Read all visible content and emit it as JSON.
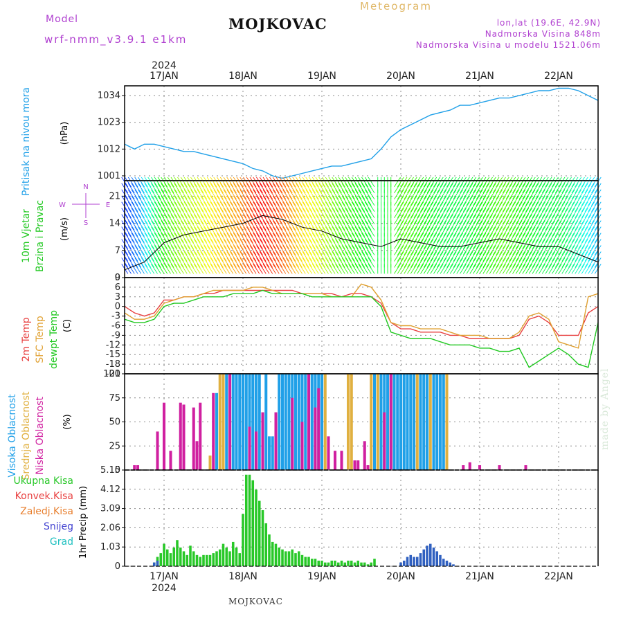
{
  "title": "MOJKOVAC",
  "footer": "MOJKOVAC",
  "meteogram_label": "Meteogram",
  "model": {
    "label": "Model",
    "name": "wrf-nmm_v3.9.1 e1km"
  },
  "location": {
    "coords": "lon,lat (19.6E, 42.9N)",
    "elevation": "Nadmorska Visina 848m",
    "model_elevation": "Nadmorska Visina u modelu 1521.06m"
  },
  "watermark": "made by Angel",
  "time_axis": {
    "year": "2024",
    "days": [
      "17JAN",
      "18JAN",
      "19JAN",
      "20JAN",
      "21JAN",
      "22JAN"
    ],
    "start_hour": -12,
    "end_hour": 132
  },
  "colors": {
    "pressure": "#20a0e8",
    "temp2m": "#e84040",
    "sfc_temp": "#e0a030",
    "dewpoint": "#20c820",
    "high_cloud": "#20a0e8",
    "mid_cloud": "#e0b040",
    "low_cloud": "#d020a0",
    "total_precip": "#28c828",
    "snow": "#3060c0"
  },
  "chart_data": [
    {
      "type": "line",
      "panel": "pressure",
      "ylabel_lines": [
        "Pritisak na nivou mora",
        "(hPa)"
      ],
      "yticks": [
        1001,
        1012,
        1023,
        1034
      ],
      "ylim": [
        999,
        1038
      ],
      "series": [
        {
          "color_key": "pressure",
          "x": [
            -12,
            -9,
            -6,
            -3,
            0,
            3,
            6,
            9,
            12,
            15,
            18,
            21,
            24,
            27,
            30,
            33,
            36,
            39,
            42,
            45,
            48,
            51,
            54,
            57,
            60,
            63,
            66,
            69,
            72,
            75,
            78,
            81,
            84,
            87,
            90,
            93,
            96,
            99,
            102,
            105,
            108,
            111,
            114,
            117,
            120,
            123,
            126,
            129,
            132
          ],
          "y": [
            1014,
            1012,
            1014,
            1014,
            1013,
            1012,
            1011,
            1011,
            1010,
            1009,
            1008,
            1007,
            1006,
            1004,
            1003,
            1001,
            1000,
            1001,
            1002,
            1003,
            1004,
            1005,
            1005,
            1006,
            1007,
            1008,
            1012,
            1017,
            1020,
            1022,
            1024,
            1026,
            1027,
            1028,
            1030,
            1030,
            1031,
            1032,
            1033,
            1033,
            1034,
            1035,
            1036,
            1036,
            1037,
            1037,
            1036,
            1034,
            1032
          ]
        }
      ]
    },
    {
      "type": "barbs",
      "panel": "wind",
      "ylabel_lines": [
        "10m Vjetar",
        "Brzina i Pravac",
        "(m/s)"
      ],
      "direction_legend": [
        "N",
        "W",
        "E",
        "S"
      ],
      "yticks": [
        0,
        7,
        14,
        21
      ],
      "ylim": [
        0,
        25
      ],
      "series": [
        {
          "name": "speed_line",
          "x": [
            -12,
            -6,
            0,
            6,
            12,
            18,
            24,
            30,
            36,
            42,
            48,
            54,
            60,
            66,
            72,
            78,
            84,
            90,
            96,
            102,
            108,
            114,
            120,
            126,
            132
          ],
          "y": [
            2,
            4,
            9,
            11,
            12,
            13,
            14,
            16,
            15,
            13,
            12,
            10,
            9,
            8,
            10,
            9,
            8,
            8,
            9,
            10,
            9,
            8,
            8,
            6,
            4
          ]
        }
      ]
    },
    {
      "type": "line",
      "panel": "temperature",
      "ylabel_lines": [
        "2m Temp",
        "SFC Temp",
        "dewpt Temp",
        "(C)"
      ],
      "yticks": [
        9,
        6,
        3,
        0,
        -3,
        -6,
        -9,
        -12,
        -15,
        -18,
        -21
      ],
      "ylim": [
        -21,
        9
      ],
      "series": [
        {
          "color_key": "temp2m",
          "x": [
            -12,
            -9,
            -6,
            -3,
            0,
            3,
            6,
            9,
            12,
            15,
            18,
            21,
            24,
            27,
            30,
            33,
            36,
            39,
            42,
            45,
            48,
            51,
            54,
            57,
            60,
            63,
            66,
            69,
            72,
            75,
            78,
            81,
            84,
            87,
            90,
            93,
            96,
            99,
            102,
            105,
            108,
            111,
            114,
            117,
            120,
            123,
            126,
            129,
            132
          ],
          "y": [
            0,
            -2,
            -3,
            -2,
            2,
            2,
            3,
            3,
            4,
            4,
            5,
            5,
            5,
            5,
            5,
            5,
            5,
            5,
            4,
            4,
            4,
            4,
            3,
            4,
            4,
            3,
            1,
            -5,
            -7,
            -7,
            -8,
            -8,
            -8,
            -9,
            -9,
            -10,
            -10,
            -10,
            -10,
            -10,
            -9,
            -4,
            -3,
            -5,
            -9,
            -9,
            -9,
            -2,
            0
          ]
        },
        {
          "color_key": "sfc_temp",
          "x": [
            -12,
            -9,
            -6,
            -3,
            0,
            3,
            6,
            9,
            12,
            15,
            18,
            21,
            24,
            27,
            30,
            33,
            36,
            39,
            42,
            45,
            48,
            51,
            54,
            57,
            60,
            63,
            66,
            69,
            72,
            75,
            78,
            81,
            84,
            87,
            90,
            93,
            96,
            99,
            102,
            105,
            108,
            111,
            114,
            117,
            120,
            123,
            126,
            129,
            132
          ],
          "y": [
            -2,
            -4,
            -4,
            -3,
            1,
            2,
            3,
            3,
            4,
            5,
            5,
            5,
            5,
            6,
            6,
            5,
            4,
            4,
            4,
            4,
            4,
            3,
            3,
            3,
            7,
            6,
            2,
            -5,
            -6,
            -6,
            -7,
            -7,
            -7,
            -8,
            -9,
            -9,
            -9,
            -10,
            -10,
            -10,
            -8,
            -3,
            -2,
            -4,
            -11,
            -12,
            -13,
            3,
            4
          ]
        },
        {
          "color_key": "dewpoint",
          "x": [
            -12,
            -9,
            -6,
            -3,
            0,
            3,
            6,
            9,
            12,
            15,
            18,
            21,
            24,
            27,
            30,
            33,
            36,
            39,
            42,
            45,
            48,
            51,
            54,
            57,
            60,
            63,
            66,
            69,
            72,
            75,
            78,
            81,
            84,
            87,
            90,
            93,
            96,
            99,
            102,
            105,
            108,
            111,
            114,
            117,
            120,
            123,
            126,
            129,
            132
          ],
          "y": [
            -4,
            -5,
            -5,
            -4,
            0,
            1,
            1,
            2,
            3,
            3,
            3,
            4,
            4,
            4,
            5,
            4,
            4,
            4,
            4,
            3,
            3,
            3,
            3,
            3,
            3,
            3,
            0,
            -8,
            -9,
            -10,
            -10,
            -10,
            -11,
            -12,
            -12,
            -12,
            -13,
            -13,
            -14,
            -14,
            -13,
            -19,
            -17,
            -15,
            -13,
            -15,
            -18,
            -19,
            -5
          ]
        }
      ]
    },
    {
      "type": "bar",
      "panel": "clouds",
      "ylabel_lines": [
        "Visoka Oblacnost",
        "Srednja Oblacnost",
        "Niska Oblacnost",
        "(%)"
      ],
      "yticks": [
        0,
        25,
        50,
        75,
        100
      ],
      "ylim": [
        0,
        100
      ],
      "series": [
        {
          "color_key": "high_cloud",
          "x": [
            16,
            19,
            20,
            21,
            22,
            23,
            24,
            25,
            26,
            27,
            28,
            29,
            31,
            32,
            33,
            35,
            36,
            37,
            38,
            39,
            40,
            41,
            42,
            43,
            45,
            46,
            47,
            48,
            64,
            66,
            67,
            68,
            70,
            71,
            72,
            73,
            74,
            75,
            76,
            78,
            79,
            80,
            82,
            83,
            84,
            85
          ],
          "y": [
            80,
            100,
            100,
            100,
            100,
            100,
            100,
            100,
            100,
            100,
            100,
            100,
            100,
            35,
            35,
            100,
            100,
            100,
            100,
            100,
            100,
            100,
            100,
            100,
            100,
            100,
            100,
            100,
            100,
            100,
            100,
            100,
            100,
            100,
            100,
            100,
            100,
            100,
            100,
            100,
            100,
            100,
            100,
            100,
            100,
            100
          ]
        },
        {
          "color_key": "mid_cloud",
          "x": [
            14,
            17,
            18,
            44,
            49,
            56,
            57,
            63,
            65,
            69,
            77,
            81,
            86
          ],
          "y": [
            15,
            100,
            100,
            100,
            100,
            100,
            100,
            100,
            100,
            100,
            100,
            100,
            100
          ]
        },
        {
          "color_key": "low_cloud",
          "x": [
            -9,
            -8,
            -2,
            0,
            2,
            5,
            6,
            9,
            10,
            11,
            15,
            20,
            26,
            28,
            30,
            34,
            39,
            42,
            44,
            46,
            47,
            50,
            52,
            54,
            58,
            59,
            61,
            62,
            67,
            69,
            91,
            93,
            96,
            102,
            110
          ],
          "y": [
            5,
            5,
            40,
            70,
            20,
            70,
            68,
            65,
            30,
            70,
            80,
            100,
            45,
            40,
            60,
            60,
            75,
            50,
            100,
            65,
            85,
            35,
            20,
            20,
            10,
            10,
            30,
            5,
            60,
            100,
            5,
            8,
            5,
            5,
            5
          ]
        }
      ]
    },
    {
      "type": "bar",
      "panel": "precip",
      "ylabel_lines": [
        "1hr Precip (mm)"
      ],
      "legend": [
        "Ukupna Kisa",
        "Konvek.Kisa",
        "Zaledj.Kisa",
        "Snijeg",
        "Grad"
      ],
      "legend_colors": [
        "#28c828",
        "#e84040",
        "#e88030",
        "#4040d0",
        "#20c0c0"
      ],
      "yticks": [
        0,
        1.03,
        2.06,
        3.09,
        4.12,
        5.15
      ],
      "ylim": [
        0,
        5.15
      ],
      "series": [
        {
          "color_key": "total_precip",
          "x": [
            -3,
            -2,
            -1,
            0,
            1,
            2,
            3,
            4,
            5,
            6,
            7,
            8,
            9,
            10,
            11,
            12,
            13,
            14,
            15,
            16,
            17,
            18,
            19,
            20,
            21,
            22,
            23,
            24,
            25,
            26,
            27,
            28,
            29,
            30,
            31,
            32,
            33,
            34,
            35,
            36,
            37,
            38,
            39,
            40,
            41,
            42,
            43,
            44,
            45,
            46,
            47,
            48,
            49,
            50,
            51,
            52,
            53,
            54,
            55,
            56,
            57,
            58,
            59,
            60,
            61,
            62,
            63,
            64
          ],
          "y": [
            0.2,
            0.5,
            0.7,
            1.2,
            0.9,
            0.7,
            1.0,
            1.4,
            1.0,
            0.8,
            0.6,
            1.1,
            0.8,
            0.6,
            0.5,
            0.6,
            0.6,
            0.6,
            0.7,
            0.8,
            0.9,
            1.2,
            1.0,
            0.8,
            1.3,
            1.0,
            0.7,
            2.8,
            4.9,
            4.9,
            4.6,
            4.1,
            3.5,
            3.0,
            2.3,
            1.7,
            1.3,
            1.2,
            1.0,
            0.9,
            0.8,
            0.8,
            0.9,
            0.7,
            0.8,
            0.6,
            0.5,
            0.5,
            0.4,
            0.4,
            0.3,
            0.3,
            0.2,
            0.2,
            0.3,
            0.3,
            0.2,
            0.3,
            0.2,
            0.3,
            0.3,
            0.2,
            0.3,
            0.2,
            0.2,
            0.1,
            0.2,
            0.4
          ]
        },
        {
          "color_key": "snow",
          "x": [
            -3,
            -2,
            72,
            73,
            74,
            75,
            76,
            77,
            78,
            79,
            80,
            81,
            82,
            83,
            84,
            85,
            86,
            87,
            88
          ],
          "y": [
            0.2,
            0.3,
            0.2,
            0.3,
            0.5,
            0.6,
            0.5,
            0.5,
            0.7,
            0.9,
            1.1,
            1.2,
            1.0,
            0.8,
            0.6,
            0.4,
            0.3,
            0.2,
            0.1
          ]
        }
      ]
    }
  ]
}
